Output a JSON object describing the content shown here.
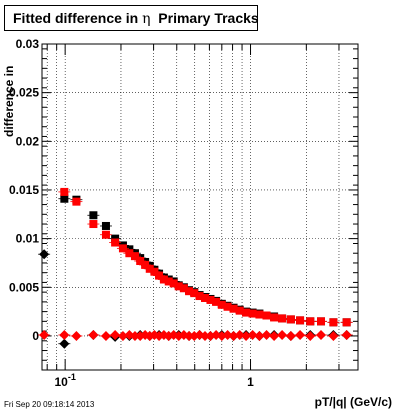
{
  "title": {
    "prefix": "Fitted difference in",
    "symbol": "η",
    "suffix": "Primary Tracks"
  },
  "timestamp": "Fri Sep 20 09:18:14 2013",
  "colors": {
    "black_series": "#000000",
    "red_series": "#ff0000",
    "grid": "#000000",
    "frame": "#000000"
  },
  "chart_data": {
    "type": "scatter",
    "xlabel": "pT/|q| (GeV/c)",
    "ylabel": "difference in",
    "xscale": "log",
    "xlim": [
      0.075,
      3.8
    ],
    "ylim": [
      -0.0035,
      0.03
    ],
    "grid": true,
    "y_ticks": [
      {
        "value": 0,
        "label": "0"
      },
      {
        "value": 0.005,
        "label": "0.005"
      },
      {
        "value": 0.01,
        "label": "0.01"
      },
      {
        "value": 0.015,
        "label": "0.015"
      },
      {
        "value": 0.02,
        "label": "0.02"
      },
      {
        "value": 0.025,
        "label": "0.025"
      },
      {
        "value": 0.03,
        "label": "0.03"
      }
    ],
    "x_ticks": [
      {
        "value": 0.1,
        "base": "10",
        "exp": "-1"
      },
      {
        "value": 1,
        "base": "1",
        "exp": ""
      }
    ],
    "series": [
      {
        "marker": "square",
        "color": "#000000",
        "points": [
          [
            0.099,
            0.0141
          ],
          [
            0.115,
            0.014
          ],
          [
            0.142,
            0.0124
          ],
          [
            0.166,
            0.0113
          ],
          [
            0.186,
            0.01
          ],
          [
            0.205,
            0.0093
          ],
          [
            0.222,
            0.0089
          ],
          [
            0.238,
            0.0085
          ],
          [
            0.254,
            0.008
          ],
          [
            0.27,
            0.0076
          ],
          [
            0.286,
            0.0072
          ],
          [
            0.303,
            0.0068
          ],
          [
            0.321,
            0.0064
          ],
          [
            0.341,
            0.006
          ],
          [
            0.362,
            0.0058
          ],
          [
            0.385,
            0.0056
          ],
          [
            0.41,
            0.0052
          ],
          [
            0.437,
            0.005
          ],
          [
            0.466,
            0.0047
          ],
          [
            0.497,
            0.0045
          ],
          [
            0.531,
            0.0042
          ],
          [
            0.568,
            0.004
          ],
          [
            0.608,
            0.0038
          ],
          [
            0.652,
            0.0036
          ],
          [
            0.7,
            0.0033
          ],
          [
            0.752,
            0.0031
          ],
          [
            0.81,
            0.0029
          ],
          [
            0.874,
            0.0027
          ],
          [
            0.946,
            0.0025
          ],
          [
            1.026,
            0.0024
          ],
          [
            1.117,
            0.0023
          ],
          [
            1.22,
            0.0021
          ],
          [
            1.34,
            0.002
          ],
          [
            1.48,
            0.0018
          ],
          [
            1.65,
            0.0017
          ],
          [
            1.85,
            0.0016
          ],
          [
            2.1,
            0.0015
          ],
          [
            2.4,
            0.0015
          ],
          [
            2.8,
            0.0014
          ],
          [
            3.3,
            0.0014
          ]
        ]
      },
      {
        "marker": "square",
        "color": "#ff0000",
        "points": [
          [
            0.099,
            0.0148
          ],
          [
            0.115,
            0.0138
          ],
          [
            0.142,
            0.0115
          ],
          [
            0.166,
            0.0104
          ],
          [
            0.186,
            0.0096
          ],
          [
            0.205,
            0.009
          ],
          [
            0.222,
            0.0085
          ],
          [
            0.238,
            0.0082
          ],
          [
            0.254,
            0.0077
          ],
          [
            0.27,
            0.0073
          ],
          [
            0.286,
            0.0069
          ],
          [
            0.303,
            0.0066
          ],
          [
            0.321,
            0.0062
          ],
          [
            0.341,
            0.0058
          ],
          [
            0.362,
            0.0056
          ],
          [
            0.385,
            0.0054
          ],
          [
            0.41,
            0.0051
          ],
          [
            0.437,
            0.0049
          ],
          [
            0.466,
            0.0046
          ],
          [
            0.497,
            0.0044
          ],
          [
            0.531,
            0.0041
          ],
          [
            0.568,
            0.0039
          ],
          [
            0.608,
            0.0037
          ],
          [
            0.652,
            0.0035
          ],
          [
            0.7,
            0.0032
          ],
          [
            0.752,
            0.003
          ],
          [
            0.81,
            0.0028
          ],
          [
            0.874,
            0.0026
          ],
          [
            0.946,
            0.0024
          ],
          [
            1.026,
            0.0023
          ],
          [
            1.117,
            0.0022
          ],
          [
            1.22,
            0.0021
          ],
          [
            1.34,
            0.0019
          ],
          [
            1.48,
            0.0018
          ],
          [
            1.65,
            0.0017
          ],
          [
            1.85,
            0.0016
          ],
          [
            2.1,
            0.0015
          ],
          [
            2.4,
            0.0015
          ],
          [
            2.8,
            0.0014
          ],
          [
            3.3,
            0.0014
          ]
        ]
      },
      {
        "marker": "diamond",
        "color": "#000000",
        "points": [
          [
            0.077,
            0.0084
          ],
          [
            0.099,
            -0.0008
          ],
          [
            0.142,
            0.0001
          ],
          [
            0.186,
            -0.0001
          ],
          [
            0.222,
            0.0
          ],
          [
            0.254,
            0.0001
          ],
          [
            0.286,
            0.0
          ],
          [
            0.321,
            0.0001
          ],
          [
            0.362,
            0.0
          ],
          [
            0.41,
            0.0001
          ],
          [
            0.466,
            0.0
          ],
          [
            0.531,
            0.0001
          ],
          [
            0.608,
            0.0
          ],
          [
            0.7,
            0.0001
          ],
          [
            0.81,
            0.0
          ],
          [
            0.946,
            0.0001
          ],
          [
            1.117,
            0.0
          ],
          [
            1.34,
            0.0001
          ],
          [
            1.65,
            0.0
          ],
          [
            2.1,
            0.0001
          ],
          [
            2.8,
            0.0001
          ],
          [
            3.3,
            0.0001
          ]
        ]
      },
      {
        "marker": "diamond",
        "color": "#ff0000",
        "points": [
          [
            0.077,
            0.0001
          ],
          [
            0.099,
            0.0001
          ],
          [
            0.115,
            0.0
          ],
          [
            0.142,
            0.0001
          ],
          [
            0.166,
            0.0
          ],
          [
            0.186,
            0.0001
          ],
          [
            0.205,
            0.0
          ],
          [
            0.222,
            0.0001
          ],
          [
            0.238,
            0.0
          ],
          [
            0.254,
            0.0
          ],
          [
            0.27,
            0.0001
          ],
          [
            0.286,
            0.0
          ],
          [
            0.303,
            0.0001
          ],
          [
            0.321,
            0.0
          ],
          [
            0.341,
            0.0001
          ],
          [
            0.362,
            0.0
          ],
          [
            0.385,
            0.0001
          ],
          [
            0.41,
            0.0
          ],
          [
            0.437,
            0.0001
          ],
          [
            0.466,
            0.0
          ],
          [
            0.497,
            0.0
          ],
          [
            0.531,
            0.0001
          ],
          [
            0.568,
            0.0
          ],
          [
            0.608,
            0.0
          ],
          [
            0.652,
            0.0001
          ],
          [
            0.7,
            0.0
          ],
          [
            0.752,
            0.0001
          ],
          [
            0.81,
            0.0
          ],
          [
            0.874,
            0.0001
          ],
          [
            0.946,
            0.0
          ],
          [
            1.026,
            0.0001
          ],
          [
            1.117,
            0.0
          ],
          [
            1.22,
            0.0001
          ],
          [
            1.34,
            0.0
          ],
          [
            1.48,
            0.0001
          ],
          [
            1.65,
            0.0
          ],
          [
            1.85,
            0.0001
          ],
          [
            2.1,
            0.0
          ],
          [
            2.4,
            0.0001
          ],
          [
            2.8,
            0.0
          ],
          [
            3.3,
            0.0001
          ]
        ]
      }
    ]
  }
}
